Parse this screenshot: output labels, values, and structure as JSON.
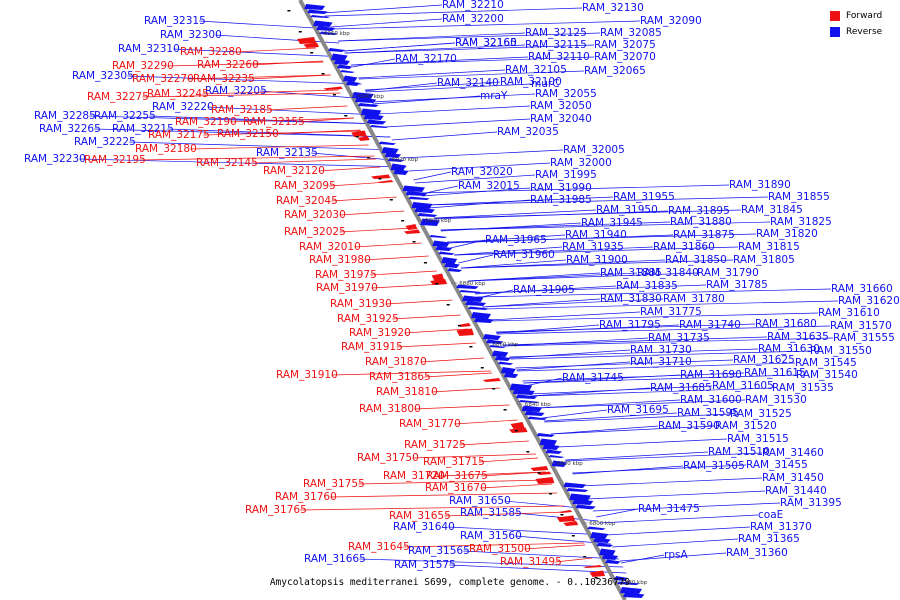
{
  "legend": {
    "items": [
      {
        "label": "Forward",
        "color": "#ee1111"
      },
      {
        "label": "Reverse",
        "color": "#1111ee"
      }
    ]
  },
  "caption": "Amycolatopsis mediterranei S699, complete genome. - 0..10236779",
  "colors": {
    "forward": "#ee1111",
    "reverse": "#1111ee",
    "axis": "#888888"
  },
  "ticks": [
    "6960 kbp",
    "6940 kbp",
    "6920 kbp",
    "6900 kbp",
    "6880 kbp",
    "6860 kbp",
    "6840 kbp",
    "6820 kbp",
    "6800 kbp",
    "6780 kbp"
  ],
  "reverse_labels": [
    "RAM_32315",
    "RAM_32300",
    "RAM_32310",
    "RAM_32305",
    "RAM_32285",
    "RAM_32255",
    "RAM_32265",
    "RAM_32215",
    "RAM_32225",
    "RAM_32230",
    "RAM_32205",
    "RAM_32220",
    "RAM_32135",
    "RAM_32210",
    "RAM_32200",
    "RAM_32165",
    "RAM_32160",
    "RAM_32170",
    "RAM_32140",
    "RAM_32130",
    "RAM_32125",
    "RAM_32115",
    "RAM_32110",
    "RAM_32105",
    "RAM_32100",
    "RAM_32090",
    "RAM_32085",
    "RAM_32075",
    "RAM_32070",
    "RAM_32065",
    "murC",
    "mraY",
    "RAM_32055",
    "RAM_32050",
    "RAM_32040",
    "RAM_32035",
    "RAM_32005",
    "RAM_32000",
    "RAM_32020",
    "RAM_31995",
    "RAM_32015",
    "RAM_31990",
    "RAM_31985",
    "RAM_31955",
    "RAM_31950",
    "RAM_31945",
    "RAM_31965",
    "RAM_31940",
    "RAM_31935",
    "RAM_31960",
    "RAM_31900",
    "RAM_31885",
    "RAM_31905",
    "RAM_31835",
    "RAM_31830",
    "RAM_31775",
    "RAM_31795",
    "RAM_31735",
    "RAM_31730",
    "RAM_31710",
    "RAM_31745",
    "RAM_31695",
    "RAM_31890",
    "RAM_31855",
    "RAM_31895",
    "RAM_31845",
    "RAM_31880",
    "RAM_31825",
    "RAM_31875",
    "RAM_31820",
    "RAM_31860",
    "RAM_31815",
    "RAM_31850",
    "RAM_31805",
    "RAM_31840",
    "RAM_31790",
    "RAM_31785",
    "RAM_31780",
    "RAM_31740",
    "RAM_31690",
    "RAM_31685",
    "RAM_31605",
    "RAM_31600",
    "RAM_31595",
    "RAM_31590",
    "RAM_31660",
    "RAM_31620",
    "RAM_31610",
    "RAM_31570",
    "RAM_31680",
    "RAM_31555",
    "RAM_31635",
    "RAM_31550",
    "RAM_31630",
    "RAM_31545",
    "RAM_31625",
    "RAM_31540",
    "RAM_31615",
    "RAM_31535",
    "RAM_31530",
    "RAM_31525",
    "RAM_31520",
    "RAM_31515",
    "RAM_31510",
    "RAM_31460",
    "RAM_31505",
    "RAM_31455",
    "RAM_31450",
    "RAM_31440",
    "RAM_31475",
    "RAM_31395",
    "coaE",
    "RAM_31370",
    "RAM_31365",
    "RAM_31360",
    "rpsA",
    "RAM_31650",
    "RAM_31585",
    "RAM_31640",
    "RAM_31560",
    "RAM_31665",
    "RAM_31565",
    "RAM_31575"
  ],
  "forward_labels": [
    "RAM_32280",
    "RAM_32290",
    "RAM_32260",
    "RAM_32270",
    "RAM_32235",
    "RAM_32275",
    "RAM_32245",
    "RAM_32185",
    "RAM_32190",
    "RAM_32155",
    "RAM_32175",
    "RAM_32150",
    "RAM_32180",
    "RAM_32195",
    "RAM_32145",
    "RAM_32120",
    "RAM_32095",
    "RAM_32045",
    "RAM_32030",
    "RAM_32025",
    "RAM_32010",
    "RAM_31980",
    "RAM_31975",
    "RAM_31970",
    "RAM_31930",
    "RAM_31925",
    "RAM_31920",
    "RAM_31915",
    "RAM_31870",
    "RAM_31910",
    "RAM_31865",
    "RAM_31810",
    "RAM_31800",
    "RAM_31770",
    "RAM_31725",
    "RAM_31750",
    "RAM_31715",
    "RAM_31755",
    "RAM_31720",
    "RAM_31675",
    "RAM_31760",
    "RAM_31670",
    "RAM_31765",
    "RAM_31655",
    "RAM_31645",
    "RAM_31500",
    "RAM_31495"
  ]
}
